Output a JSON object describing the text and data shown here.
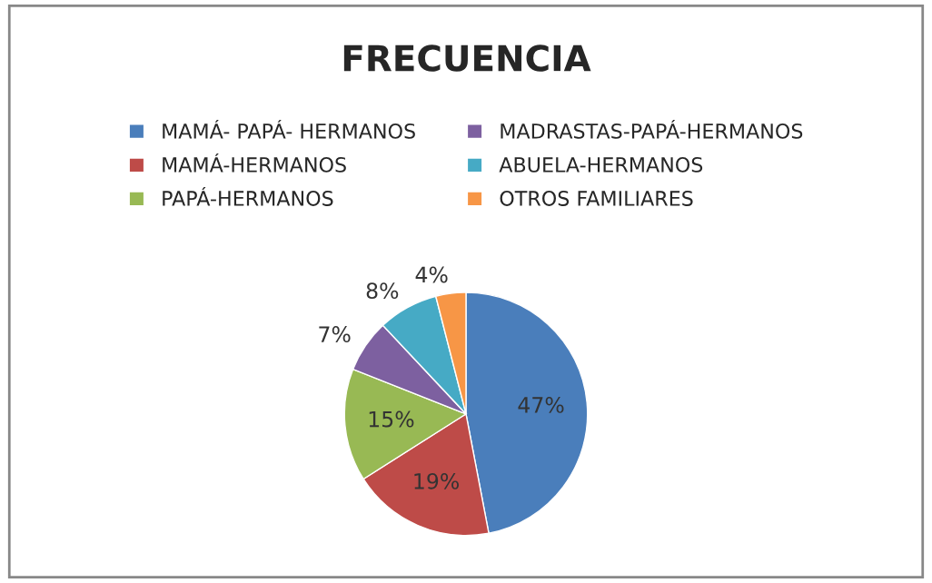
{
  "chart_data": {
    "type": "pie",
    "title": "FRECUENCIA",
    "categories": [
      "MAMÁ- PAPÁ- HERMANOS",
      "MAMÁ-HERMANOS",
      "PAPÁ-HERMANOS",
      "MADRASTAS-PAPÁ-HERMANOS",
      "ABUELA-HERMANOS",
      "OTROS FAMILIARES"
    ],
    "values": [
      47,
      19,
      15,
      7,
      8,
      4
    ],
    "value_labels": [
      "47%",
      "19%",
      "15%",
      "7%",
      "8%",
      "4%"
    ],
    "colors": [
      "#4a7ebb",
      "#be4b48",
      "#98b954",
      "#7d60a0",
      "#46aac5",
      "#f79646"
    ],
    "legend": "top"
  }
}
